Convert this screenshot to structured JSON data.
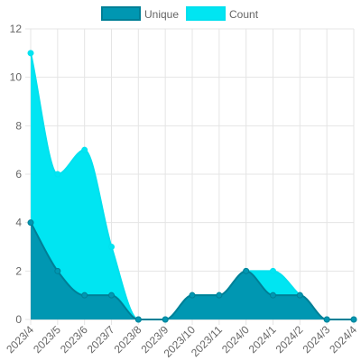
{
  "chart_data": {
    "type": "area",
    "categories": [
      "2023/4",
      "2023/5",
      "2023/6",
      "2023/7",
      "2023/8",
      "2023/9",
      "2023/10",
      "2023/11",
      "2024/0",
      "2024/1",
      "2024/2",
      "2024/3",
      "2024/4"
    ],
    "series": [
      {
        "name": "Unique",
        "values": [
          4,
          2,
          1,
          1,
          0,
          0,
          1,
          1,
          2,
          1,
          1,
          0,
          0
        ],
        "fill": "#0097b2",
        "stroke": "#007f96"
      },
      {
        "name": "Count",
        "values": [
          11,
          6,
          7,
          3,
          0,
          0,
          1,
          1,
          2,
          2,
          1,
          0,
          0
        ],
        "fill": "#00e5f2",
        "stroke": "#00e0ee"
      }
    ],
    "yticks": [
      "0",
      "2",
      "4",
      "6",
      "8",
      "10",
      "12"
    ],
    "ylim": [
      0,
      12
    ],
    "grid": true,
    "legend_position": "top"
  }
}
